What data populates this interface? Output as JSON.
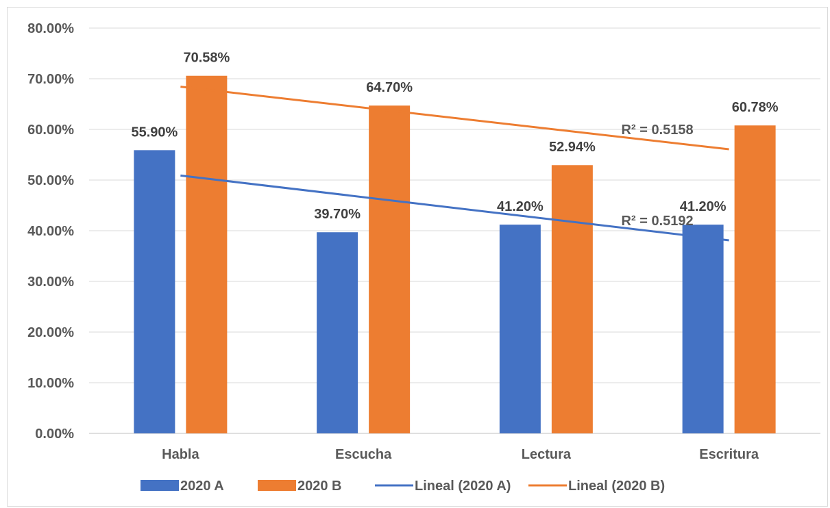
{
  "chart_data": {
    "type": "bar",
    "categories": [
      "Habla",
      "Escucha",
      "Lectura",
      "Escritura"
    ],
    "series": [
      {
        "name": "2020 A",
        "values": [
          0.559,
          0.397,
          0.412,
          0.412
        ],
        "labels": [
          "55.90%",
          "39.70%",
          "41.20%",
          "41.20%"
        ],
        "color": "#4472c4"
      },
      {
        "name": "2020 B",
        "values": [
          0.7058,
          0.647,
          0.5294,
          0.6078
        ],
        "labels": [
          "70.58%",
          "64.70%",
          "52.94%",
          "60.78%"
        ],
        "color": "#ed7d31"
      }
    ],
    "trendlines": [
      {
        "name": "Lineal (2020 A)",
        "series": "2020 A",
        "type": "linear",
        "r2_label": "R² = 0.5192",
        "color": "#4472c4"
      },
      {
        "name": "Lineal (2020 B)",
        "series": "2020 B",
        "type": "linear",
        "r2_label": "R² = 0.5158",
        "color": "#ed7d31"
      }
    ],
    "yticks": [
      "0.00%",
      "10.00%",
      "20.00%",
      "30.00%",
      "40.00%",
      "50.00%",
      "60.00%",
      "70.00%",
      "80.00%"
    ],
    "ylim": [
      0,
      0.8
    ],
    "title": "",
    "xlabel": "",
    "ylabel": "",
    "grid": true,
    "legend_position": "bottom"
  }
}
